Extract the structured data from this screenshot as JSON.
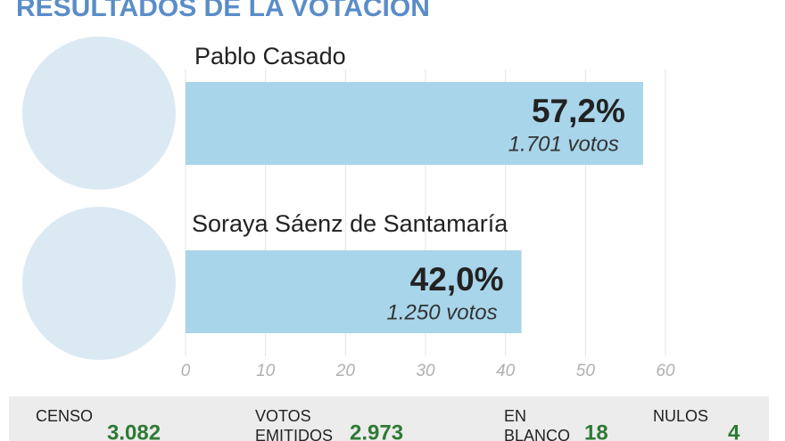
{
  "chart_data": {
    "type": "bar",
    "title": "RESULTADOS DE LA VOTACIÓN",
    "categories": [
      "Pablo Casado",
      "Soraya Sáenz de Santamaría"
    ],
    "values": [
      57.2,
      42.0
    ],
    "value_labels": [
      "57,2%",
      "42,0%"
    ],
    "votes": [
      {
        "value": 1701,
        "label": "1.701 votos"
      },
      {
        "value": 1250,
        "label": "1.250 votos"
      }
    ],
    "color": "#a8d5ea",
    "xlim": [
      0,
      60
    ],
    "xticks": [
      0,
      10,
      20,
      30,
      40,
      50,
      60
    ],
    "grid": true
  },
  "stats": [
    {
      "label": [
        "CENSO"
      ],
      "value": "3.082"
    },
    {
      "label": [
        "VOTOS",
        "EMITIDOS"
      ],
      "value": "2.973"
    },
    {
      "label": [
        "EN",
        "BLANCO"
      ],
      "value": "18"
    },
    {
      "label": [
        "NULOS"
      ],
      "value": "4"
    }
  ]
}
